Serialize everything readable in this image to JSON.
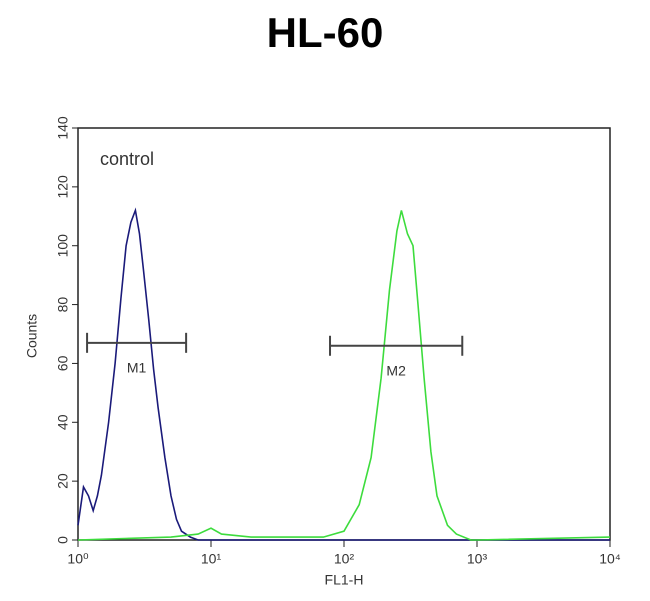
{
  "chart_data": {
    "type": "line",
    "title": "HL-60",
    "x_label": "FL1-H",
    "y_label": "Counts",
    "x_scale": "log",
    "xlim": [
      1,
      10000
    ],
    "ylim": [
      0,
      140
    ],
    "xticks": [
      {
        "value": 1,
        "label": "10⁰"
      },
      {
        "value": 10,
        "label": "10¹"
      },
      {
        "value": 100,
        "label": "10²"
      },
      {
        "value": 1000,
        "label": "10³"
      },
      {
        "value": 10000,
        "label": "10⁴"
      }
    ],
    "yticks": [
      0,
      20,
      40,
      60,
      80,
      100,
      120,
      140
    ],
    "annotations": [
      {
        "text": "control"
      }
    ],
    "series": [
      {
        "color": "#1a1a7a",
        "x": [
          1,
          1.1,
          1.2,
          1.3,
          1.4,
          1.5,
          1.7,
          1.9,
          2.1,
          2.3,
          2.5,
          2.7,
          2.9,
          3.1,
          3.4,
          3.7,
          4,
          4.5,
          5,
          5.5,
          6,
          7,
          8,
          10,
          20,
          50,
          100,
          1000,
          10000
        ],
        "values": [
          5,
          18,
          15,
          10,
          15,
          22,
          40,
          60,
          82,
          100,
          108,
          112,
          104,
          92,
          75,
          58,
          45,
          28,
          15,
          7,
          3,
          1,
          0,
          0,
          0,
          0,
          0,
          0,
          0
        ]
      },
      {
        "color": "#3ddc3d",
        "x": [
          1,
          5,
          8,
          10,
          12,
          20,
          40,
          70,
          100,
          130,
          160,
          190,
          220,
          250,
          270,
          300,
          330,
          360,
          400,
          450,
          500,
          600,
          700,
          900,
          1000,
          10000
        ],
        "values": [
          0,
          1,
          2,
          4,
          2,
          1,
          1,
          1,
          3,
          12,
          28,
          55,
          85,
          105,
          112,
          104,
          100,
          80,
          55,
          30,
          15,
          5,
          2,
          0,
          0,
          1
        ]
      }
    ],
    "markers": [
      {
        "label": "M1",
        "range": [
          1.17,
          6.5
        ],
        "y": 67
      },
      {
        "label": "M2",
        "range": [
          78.5,
          775
        ],
        "y": 66
      }
    ]
  }
}
